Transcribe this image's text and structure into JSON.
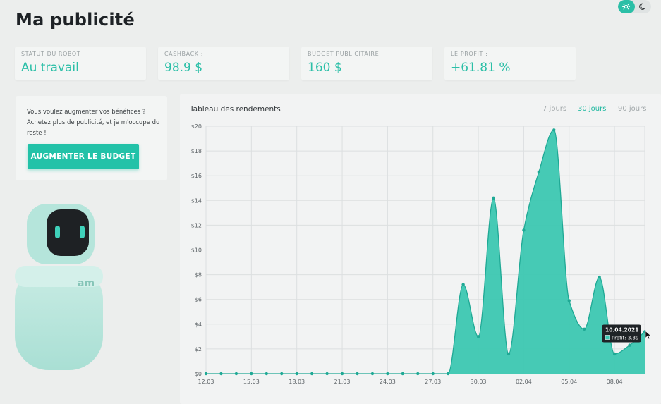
{
  "page": {
    "title": "Ma publicité"
  },
  "theme_toggle": {
    "light_icon": "sun-icon",
    "dark_icon": "moon-icon",
    "active": "light"
  },
  "stats": [
    {
      "label": "STATUT DU ROBOT",
      "value": "Au travail"
    },
    {
      "label": "CASHBACK :",
      "value": "98.9 $"
    },
    {
      "label": "BUDGET PUBLICITAIRE",
      "value": "160 $"
    },
    {
      "label": "LE PROFIT :",
      "value": "+61.81 %"
    }
  ],
  "promo": {
    "text": "Vous voulez augmenter vos bénéfices ? Achetez plus de publicité, et je m'occupe du reste !",
    "button_label": "AUGMENTER LE BUDGET"
  },
  "robot": {
    "logo_text": "am"
  },
  "chart_panel": {
    "title": "Tableau des rendements",
    "periods": [
      "7 jours",
      "30 jours",
      "90 jours"
    ],
    "active_period": "30 jours",
    "tooltip": {
      "date": "10.04.2021",
      "text": "Profit: 3.39"
    }
  },
  "colors": {
    "accent": "#22c2a8",
    "accent_fill": "#3cc7b1",
    "line": "#1fa995"
  },
  "chart_data": {
    "type": "area",
    "title": "Tableau des rendements",
    "xlabel": "",
    "ylabel": "",
    "x_tick_labels": [
      "12.03",
      "15.03",
      "18.03",
      "21.03",
      "24.03",
      "27.03",
      "30.03",
      "02.04",
      "05.04",
      "08.04"
    ],
    "y_tick_labels": [
      "$0",
      "$2",
      "$4",
      "$6",
      "$8",
      "$10",
      "$12",
      "$14",
      "$16",
      "$18",
      "$20"
    ],
    "ylim": [
      0,
      20
    ],
    "grid": true,
    "series": [
      {
        "name": "Profit",
        "x": [
          "12.03",
          "13.03",
          "14.03",
          "15.03",
          "16.03",
          "17.03",
          "18.03",
          "19.03",
          "20.03",
          "21.03",
          "22.03",
          "23.03",
          "24.03",
          "25.03",
          "26.03",
          "27.03",
          "28.03",
          "29.03",
          "30.03",
          "31.03",
          "01.04",
          "02.04",
          "03.04",
          "04.04",
          "05.04",
          "06.04",
          "07.04",
          "08.04",
          "09.04",
          "10.04"
        ],
        "values": [
          0,
          0,
          0,
          0,
          0,
          0,
          0,
          0,
          0,
          0,
          0,
          0,
          0,
          0,
          0,
          0,
          0,
          7.2,
          3.0,
          14.2,
          1.6,
          11.6,
          16.3,
          19.7,
          5.9,
          3.6,
          7.8,
          1.6,
          2.3,
          3.39
        ]
      }
    ]
  }
}
